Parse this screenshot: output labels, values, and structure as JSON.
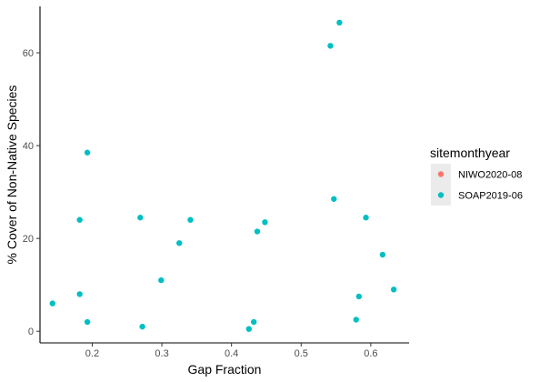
{
  "chart_data": {
    "type": "scatter",
    "xlabel": "Gap Fraction",
    "ylabel": "% Cover of Non-Native Species",
    "xlim": [
      0.125,
      0.655
    ],
    "ylim": [
      -2.5,
      70
    ],
    "xticks": [
      0.2,
      0.3,
      0.4,
      0.5,
      0.6
    ],
    "xtick_labels": [
      "0.2",
      "0.3",
      "0.4",
      "0.5",
      "0.6"
    ],
    "yticks": [
      0,
      20,
      40,
      60
    ],
    "ytick_labels": [
      "0",
      "20",
      "40",
      "60"
    ],
    "grid": false,
    "legend": {
      "title": "sitemonthyear",
      "placement": "right",
      "entries": [
        "NIWO2020-08",
        "SOAP2019-06"
      ]
    },
    "series": [
      {
        "name": "NIWO2020-08",
        "color": "#F8766D",
        "points": []
      },
      {
        "name": "SOAP2019-06",
        "color": "#00BFC4",
        "points": [
          [
            0.555,
            66.5
          ],
          [
            0.542,
            61.5
          ],
          [
            0.193,
            38.5
          ],
          [
            0.547,
            28.5
          ],
          [
            0.269,
            24.5
          ],
          [
            0.593,
            24.5
          ],
          [
            0.182,
            24
          ],
          [
            0.341,
            24
          ],
          [
            0.448,
            23.5
          ],
          [
            0.437,
            21.5
          ],
          [
            0.325,
            19
          ],
          [
            0.617,
            16.5
          ],
          [
            0.299,
            11
          ],
          [
            0.633,
            9
          ],
          [
            0.182,
            8
          ],
          [
            0.583,
            7.5
          ],
          [
            0.143,
            6
          ],
          [
            0.579,
            2.5
          ],
          [
            0.193,
            2
          ],
          [
            0.432,
            2
          ],
          [
            0.272,
            1
          ],
          [
            0.425,
            0.5
          ]
        ]
      }
    ]
  }
}
